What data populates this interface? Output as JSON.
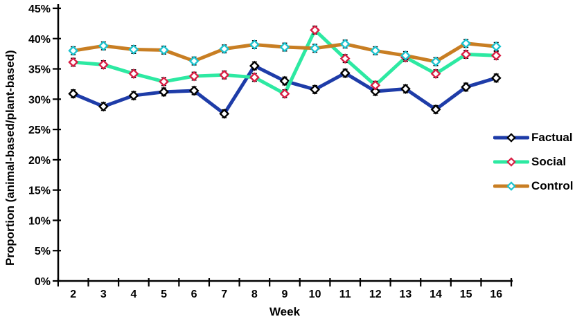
{
  "figure": {
    "y_axis_title": "Proportion (animal-based/plant-based)",
    "x_axis_title": "Week"
  },
  "chart_data": {
    "type": "line",
    "title": "",
    "xlabel": "Week",
    "ylabel": "Proportion (animal-based/plant-based)",
    "categories": [
      "2",
      "3",
      "4",
      "5",
      "6",
      "7",
      "8",
      "9",
      "10",
      "11",
      "12",
      "13",
      "14",
      "15",
      "16"
    ],
    "y_tick_labels": [
      "0%",
      "5%",
      "10%",
      "15%",
      "20%",
      "25%",
      "30%",
      "35%",
      "40%",
      "45%"
    ],
    "ylim": [
      0,
      45
    ],
    "y_tick_step": 5,
    "grid": false,
    "legend_position": "right",
    "error_bar_pct": 0.65,
    "axis_color": "#000000",
    "marker_fill": "#ffffff",
    "series": [
      {
        "name": "Factual",
        "line_color": "#1e3ca8",
        "marker_outline": "#000000",
        "values": [
          30.9,
          28.8,
          30.6,
          31.2,
          31.4,
          27.6,
          35.5,
          33.0,
          31.6,
          34.3,
          31.3,
          31.7,
          28.3,
          32.0,
          33.5
        ]
      },
      {
        "name": "Social",
        "line_color": "#2de9a2",
        "marker_outline": "#d91e44",
        "values": [
          36.1,
          35.7,
          34.2,
          32.9,
          33.8,
          34.0,
          33.6,
          30.9,
          41.4,
          36.7,
          32.3,
          36.9,
          34.2,
          37.4,
          37.2
        ]
      },
      {
        "name": "Control",
        "line_color": "#c87e23",
        "marker_outline": "#1bc2ce",
        "values": [
          38.0,
          38.8,
          38.2,
          38.1,
          36.3,
          38.3,
          39.0,
          38.6,
          38.4,
          39.1,
          38.0,
          37.2,
          36.2,
          39.2,
          38.7
        ]
      }
    ]
  }
}
